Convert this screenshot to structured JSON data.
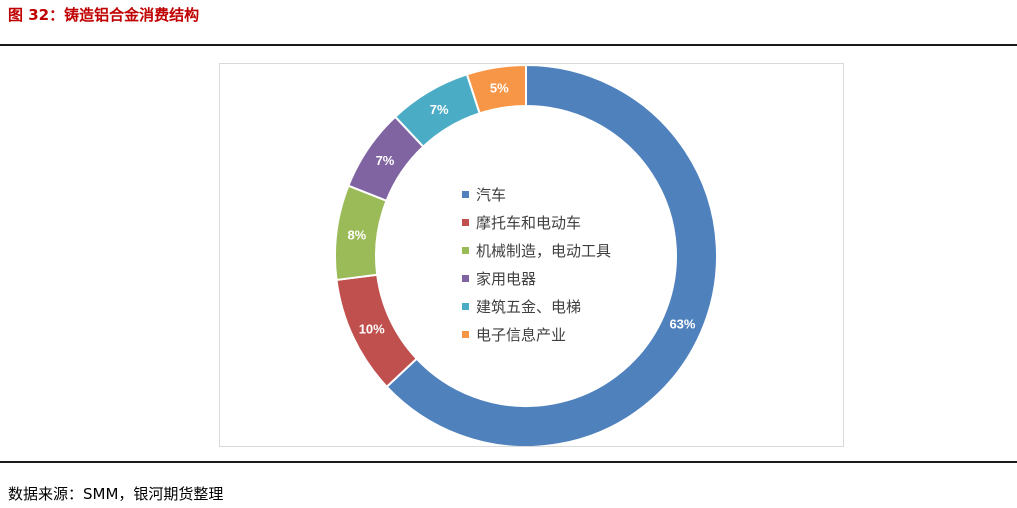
{
  "figure": {
    "title": "图 32：铸造铝合金消费结构"
  },
  "source": {
    "text": "数据来源：SMM，银河期货整理"
  },
  "chart_data": {
    "type": "pie",
    "donut": true,
    "title": "",
    "legend_position": "center",
    "categories": [
      "汽车",
      "摩托车和电动车",
      "机械制造，电动工具",
      "家用电器",
      "建筑五金、电梯",
      "电子信息产业"
    ],
    "values": [
      63,
      10,
      8,
      7,
      7,
      5
    ],
    "data_labels": [
      "63%",
      "10%",
      "8%",
      "7%",
      "7%",
      "5%"
    ],
    "colors": [
      "#4f81bd",
      "#c0504d",
      "#9bbb59",
      "#8064a2",
      "#4bacc6",
      "#f79646"
    ]
  }
}
